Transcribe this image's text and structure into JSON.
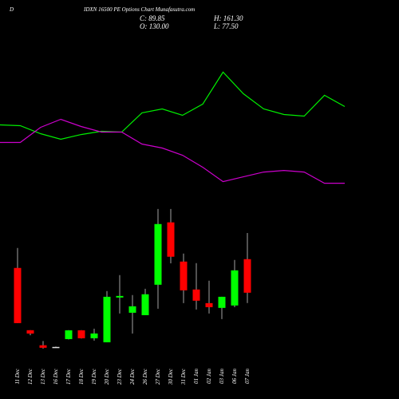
{
  "chart_data": {
    "type": "candlestick",
    "logo": "D",
    "title": "IDXN 16500 PE Options Chart Munafasutra.com",
    "stats": {
      "close": "C: 89.85",
      "high": "H: 161.30",
      "open": "O: 130.00",
      "low": "L: 77.50"
    },
    "categories": [
      "11 Dec",
      "12 Dec",
      "13 Dec",
      "16 Dec",
      "17 Dec",
      "18 Dec",
      "19 Dec",
      "20 Dec",
      "23 Dec",
      "24 Dec",
      "26 Dec",
      "27 Dec",
      "30 Dec",
      "31 Dec",
      "01 Jan",
      "02 Jan",
      "03 Jan",
      "06 Jan",
      "07 Jan"
    ],
    "open": [
      119.5,
      45,
      27,
      24.5,
      34.4,
      44.9,
      35.4,
      30.6,
      84.1,
      65.9,
      63,
      99.4,
      174,
      127.1,
      93.7,
      77.4,
      71.7,
      74.6,
      130
    ],
    "high": [
      143.4,
      45,
      32,
      25.5,
      45,
      45,
      46.8,
      91.8,
      110.9,
      87,
      94.6,
      190,
      190,
      136.7,
      125.2,
      104.2,
      85,
      129,
      161.3
    ],
    "low": [
      53.5,
      39,
      23,
      24,
      34,
      35,
      32.5,
      30.6,
      65,
      41,
      63,
      70.7,
      125,
      77.4,
      69.8,
      65,
      58.3,
      72.6,
      77.5
    ],
    "close": [
      53.5,
      41,
      24,
      25,
      44.9,
      35.4,
      41.1,
      85,
      86,
      73.6,
      88,
      172,
      132.9,
      92.7,
      80.3,
      72.6,
      85,
      116.6,
      89.85
    ],
    "up_color": "#00ff00",
    "down_color": "#ff0000",
    "ylim": [
      20,
      440
    ],
    "lines": [
      {
        "color": "#00ee00",
        "values": [
          290.6,
          289.7,
          280.1,
          273.4,
          279.1,
          283,
          282,
          305,
          309.7,
          302.1,
          315.5,
          353.7,
          327.9,
          309.7,
          303,
          301.1,
          326,
          312.6
        ]
      },
      {
        "color": "#cc00cc",
        "values": [
          269.6,
          269.6,
          287.7,
          297.3,
          288.7,
          282,
          282,
          267.7,
          262.9,
          254.3,
          239.9,
          222.7,
          228.5,
          234.2,
          236.1,
          234.2,
          220.8,
          220.8
        ]
      }
    ]
  }
}
